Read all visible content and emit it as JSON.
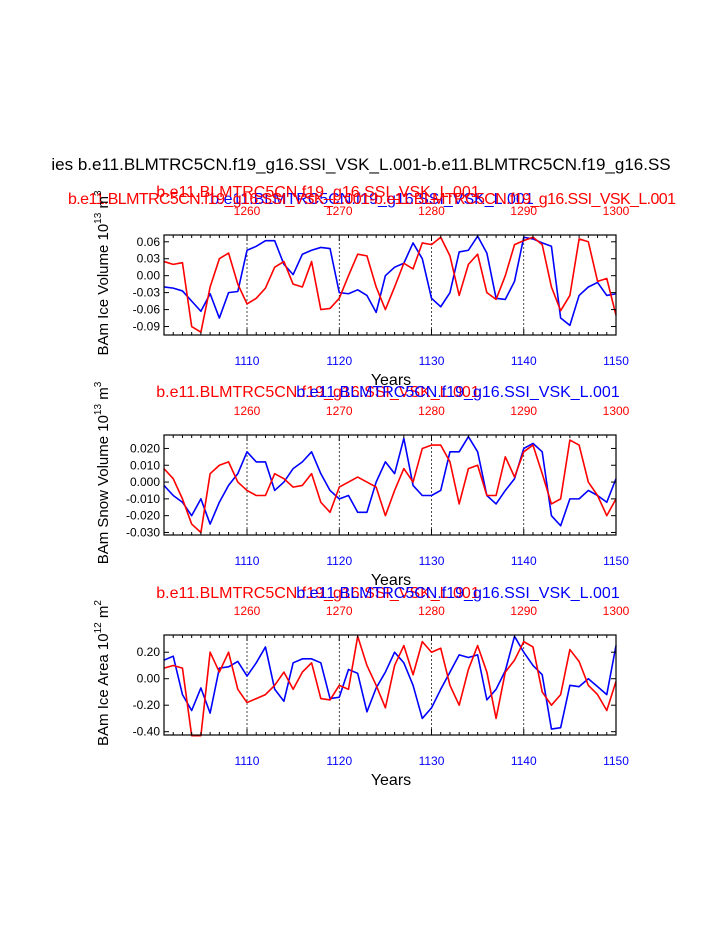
{
  "figure": {
    "main_title": "ies b.e11.BLMTRC5CN.f19_g16.SSI_VSK_L.001-b.e11.BLMTRC5CN.f19_g16.SS",
    "legend_blue": "b.e11.BLMTRC5CN.f19_g16.SSI_VSK_L.001",
    "legend_red": "b.e11.BLMTRC5CN.f19_g16.SSI_VSK_L.001-b.e11.BLMTRC5CN.f19_g16.SSI_VSK_L.001",
    "colors": {
      "blue": "#0000ff",
      "red": "#ff0000",
      "axis": "#000000",
      "grid": "#000000"
    }
  },
  "chart_data": [
    {
      "type": "line",
      "title_red": "b.e11.BLMTRC5CN.f19_g16.SSI_VSK_L.001",
      "title_blue": "b.e11.BLMTRC5CN.f19_g16.SSI_VSK_L.001",
      "ylabel": "BAm Ice Volume 10",
      "ylabel_exp": "13",
      "ylabel_unit": " m",
      "ylabel_unit_exp": "3",
      "xlabel": "Years",
      "ylim": [
        -0.105,
        0.072
      ],
      "yticks": [
        -0.09,
        -0.06,
        -0.03,
        0.0,
        0.03,
        0.06
      ],
      "ytick_labels": [
        "-0.09",
        "-0.06",
        "-0.03",
        "0.00",
        "0.03",
        "0.06"
      ],
      "bottom_axis": {
        "range": [
          1101,
          1150
        ],
        "ticks": [
          1110,
          1120,
          1130,
          1140,
          1150
        ],
        "color": "#0000ff"
      },
      "top_axis": {
        "range": [
          1251,
          1300
        ],
        "ticks": [
          1260,
          1270,
          1280,
          1290,
          1300
        ],
        "color": "#ff0000"
      },
      "grid_x": [
        1110,
        1120,
        1130,
        1140
      ],
      "series": [
        {
          "name": "blue",
          "color": "#0000ff",
          "x_start": 1101,
          "values": [
            -0.02,
            -0.022,
            -0.027,
            -0.045,
            -0.063,
            -0.032,
            -0.075,
            -0.03,
            -0.028,
            0.045,
            0.052,
            0.062,
            0.062,
            0.02,
            0.002,
            0.038,
            0.045,
            0.05,
            0.048,
            -0.03,
            -0.032,
            -0.025,
            -0.035,
            -0.065,
            0.0,
            0.015,
            0.022,
            0.058,
            0.03,
            -0.04,
            -0.055,
            -0.03,
            0.042,
            0.045,
            0.07,
            0.04,
            -0.04,
            -0.042,
            -0.01,
            0.068,
            0.065,
            0.058,
            0.052,
            -0.075,
            -0.088,
            -0.035,
            -0.02,
            -0.012,
            -0.035,
            -0.032
          ]
        },
        {
          "name": "red",
          "color": "#ff0000",
          "x_start": 1101,
          "values": [
            0.025,
            0.02,
            0.023,
            -0.09,
            -0.1,
            -0.02,
            0.03,
            0.04,
            -0.015,
            -0.05,
            -0.04,
            -0.022,
            0.015,
            0.025,
            -0.015,
            -0.02,
            0.025,
            -0.06,
            -0.058,
            -0.04,
            0.0,
            0.038,
            0.035,
            -0.02,
            -0.06,
            -0.02,
            0.022,
            0.012,
            0.058,
            0.055,
            0.068,
            0.035,
            -0.035,
            0.02,
            0.038,
            -0.03,
            -0.042,
            0.0,
            0.055,
            0.062,
            0.068,
            0.055,
            -0.02,
            -0.062,
            -0.035,
            0.065,
            0.06,
            -0.01,
            -0.005,
            -0.07
          ]
        }
      ]
    },
    {
      "type": "line",
      "title_red": "b.e11.BLMTRC5CN.f19_g16.SSI_VSK_L.001",
      "title_blue": "b.e11.BLMTRC5CN.f19_g16.SSI_VSK_L.001",
      "ylabel": "BAm Snow Volume 10",
      "ylabel_exp": "13",
      "ylabel_unit": " m",
      "ylabel_unit_exp": "3",
      "xlabel": "Years",
      "ylim": [
        -0.0315,
        0.028
      ],
      "yticks": [
        -0.03,
        -0.02,
        -0.01,
        0.0,
        0.01,
        0.02
      ],
      "ytick_labels": [
        "-0.030",
        "-0.020",
        "-0.010",
        "0.000",
        "0.010",
        "0.020"
      ],
      "bottom_axis": {
        "range": [
          1101,
          1150
        ],
        "ticks": [
          1110,
          1120,
          1130,
          1140,
          1150
        ],
        "color": "#0000ff"
      },
      "top_axis": {
        "range": [
          1251,
          1300
        ],
        "ticks": [
          1260,
          1270,
          1280,
          1290,
          1300
        ],
        "color": "#ff0000"
      },
      "grid_x": [
        1110,
        1120,
        1130,
        1140
      ],
      "series": [
        {
          "name": "blue",
          "color": "#0000ff",
          "x_start": 1101,
          "values": [
            -0.002,
            -0.008,
            -0.012,
            -0.02,
            -0.01,
            -0.025,
            -0.012,
            -0.002,
            0.005,
            0.018,
            0.012,
            0.012,
            -0.005,
            0.0,
            0.008,
            0.012,
            0.018,
            0.005,
            -0.005,
            -0.01,
            -0.008,
            -0.018,
            -0.018,
            0.0,
            0.012,
            0.005,
            0.026,
            -0.002,
            -0.008,
            -0.008,
            -0.005,
            0.018,
            0.018,
            0.027,
            0.018,
            -0.008,
            -0.013,
            -0.005,
            0.002,
            0.02,
            0.023,
            0.018,
            -0.02,
            -0.026,
            -0.01,
            -0.01,
            -0.005,
            -0.008,
            -0.012,
            0.002
          ]
        },
        {
          "name": "red",
          "color": "#ff0000",
          "x_start": 1101,
          "values": [
            0.008,
            0.002,
            -0.01,
            -0.025,
            -0.03,
            0.005,
            0.01,
            0.012,
            0.0,
            -0.005,
            -0.008,
            -0.008,
            0.005,
            0.002,
            -0.003,
            -0.002,
            0.005,
            -0.012,
            -0.018,
            -0.003,
            0.0,
            0.003,
            0.0,
            -0.003,
            -0.02,
            -0.005,
            0.008,
            0.0,
            0.02,
            0.022,
            0.022,
            0.012,
            -0.013,
            0.008,
            0.01,
            -0.008,
            -0.008,
            0.015,
            0.003,
            0.018,
            0.022,
            0.005,
            -0.013,
            -0.01,
            0.025,
            0.022,
            0.0,
            -0.008,
            -0.02,
            -0.01
          ]
        }
      ]
    },
    {
      "type": "line",
      "title_red": "b.e11.BLMTRC5CN.f19_g16.SSI_VSK_L.001",
      "title_blue": "b.e11.BLMTRC5CN.f19_g16.SSI_VSK_L.001",
      "ylabel": "BAm Ice Area 10",
      "ylabel_exp": "12",
      "ylabel_unit": " m",
      "ylabel_unit_exp": "2",
      "xlabel": "Years",
      "ylim": [
        -0.425,
        0.33
      ],
      "yticks": [
        -0.4,
        -0.2,
        0.0,
        0.2
      ],
      "ytick_labels": [
        "-0.40",
        "-0.20",
        "0.00",
        "0.20"
      ],
      "bottom_axis": {
        "range": [
          1101,
          1150
        ],
        "ticks": [
          1110,
          1120,
          1130,
          1140,
          1150
        ],
        "color": "#0000ff"
      },
      "top_axis": {
        "range": [
          1251,
          1300
        ],
        "ticks": [
          1260,
          1270,
          1280,
          1290,
          1300
        ],
        "color": "#ff0000"
      },
      "grid_x": [
        1110,
        1120,
        1130,
        1140
      ],
      "series": [
        {
          "name": "blue",
          "color": "#0000ff",
          "x_start": 1101,
          "values": [
            0.14,
            0.17,
            -0.12,
            -0.24,
            -0.07,
            -0.26,
            0.08,
            0.09,
            0.13,
            0.02,
            0.12,
            0.24,
            -0.08,
            -0.17,
            0.12,
            0.15,
            0.15,
            0.12,
            -0.15,
            -0.14,
            0.07,
            0.04,
            -0.25,
            -0.07,
            0.05,
            0.2,
            0.12,
            -0.05,
            -0.3,
            -0.22,
            -0.08,
            0.05,
            0.18,
            0.16,
            0.18,
            -0.16,
            -0.08,
            0.06,
            0.32,
            0.2,
            0.1,
            0.03,
            -0.38,
            -0.37,
            -0.05,
            -0.06,
            0.0,
            -0.06,
            -0.12,
            0.25
          ]
        },
        {
          "name": "red",
          "color": "#ff0000",
          "x_start": 1101,
          "values": [
            0.08,
            0.1,
            0.08,
            -0.43,
            -0.43,
            0.2,
            0.05,
            0.2,
            -0.08,
            -0.18,
            -0.15,
            -0.12,
            -0.05,
            0.05,
            -0.08,
            0.05,
            0.12,
            -0.15,
            -0.16,
            -0.05,
            -0.08,
            0.32,
            0.1,
            -0.05,
            -0.22,
            0.1,
            0.25,
            0.03,
            0.28,
            0.2,
            0.23,
            -0.05,
            -0.2,
            0.07,
            0.25,
            0.05,
            -0.3,
            0.05,
            0.14,
            0.28,
            0.24,
            -0.1,
            -0.2,
            -0.12,
            0.22,
            0.13,
            -0.05,
            -0.12,
            -0.24,
            -0.02
          ]
        }
      ]
    }
  ]
}
